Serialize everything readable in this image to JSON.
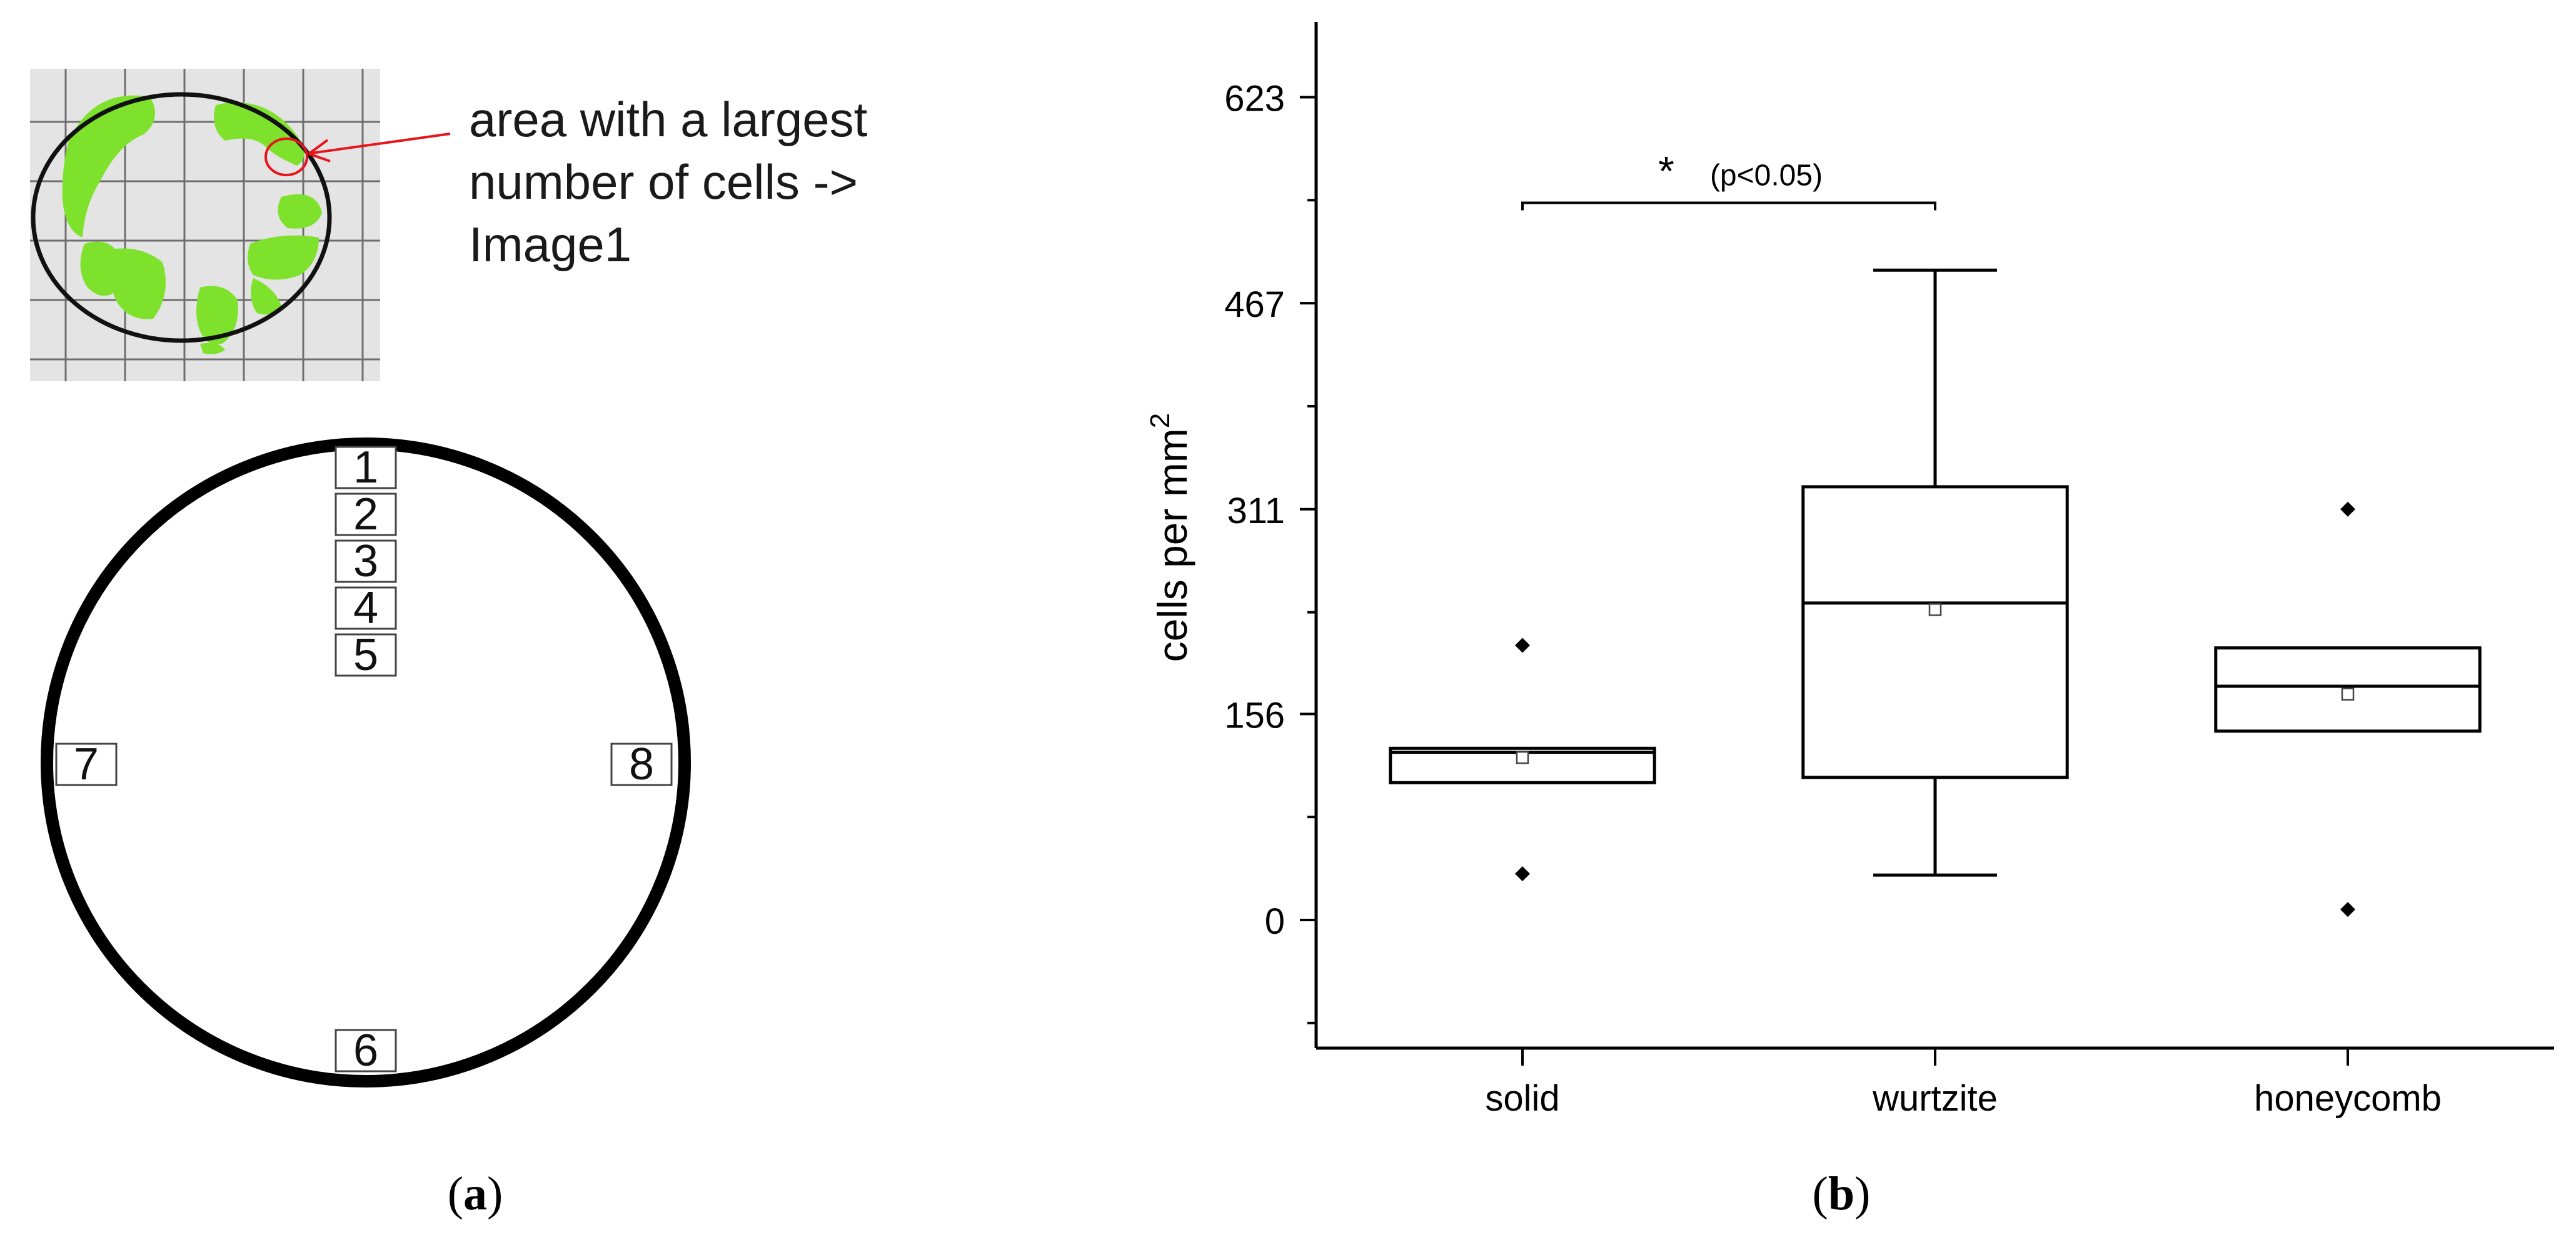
{
  "panel_a": {
    "caption": "a",
    "annotation_lines": [
      "area with a largest",
      "number of cells ->",
      "Image1"
    ],
    "position_labels": [
      "1",
      "2",
      "3",
      "4",
      "5",
      "6",
      "7",
      "8"
    ],
    "colors": {
      "photo_background": "#e4e4e4",
      "grid_lines": "#6f6f6f",
      "cell_green": "#7ee12c",
      "marker_red": "#e8141c",
      "ring": "#000000"
    }
  },
  "panel_b": {
    "caption": "b"
  },
  "chart_data": {
    "type": "box",
    "title": "",
    "xlabel": "",
    "ylabel": "cells per mm",
    "ylabel_superscript": "2",
    "ylim": [
      -97,
      680
    ],
    "yticks": [
      0,
      156,
      311,
      467,
      623
    ],
    "ytick_labels": [
      "0",
      "156",
      "311",
      "467",
      "623"
    ],
    "y_minor_ticks": [
      -78,
      78,
      233,
      389,
      545
    ],
    "categories": [
      "solid",
      "wurtzite",
      "honeycomb"
    ],
    "boxes": [
      {
        "category": "solid",
        "whisker_low": 104,
        "q1": 104,
        "median": 127,
        "q3": 130,
        "whisker_high": 130,
        "mean": 123,
        "outliers": [
          35,
          208
        ]
      },
      {
        "category": "wurtzite",
        "whisker_low": 34,
        "q1": 108,
        "median": 240,
        "q3": 328,
        "whisker_high": 492,
        "mean": 235,
        "outliers": []
      },
      {
        "category": "honeycomb",
        "whisker_low": 143,
        "q1": 143,
        "median": 177,
        "q3": 206,
        "whisker_high": 206,
        "mean": 171,
        "outliers": [
          8,
          311
        ]
      }
    ],
    "significance": {
      "from": "solid",
      "to": "wurtzite",
      "marker": "*",
      "label": "(p<0.05)",
      "y": 543
    },
    "grid": false,
    "legend": "none"
  }
}
